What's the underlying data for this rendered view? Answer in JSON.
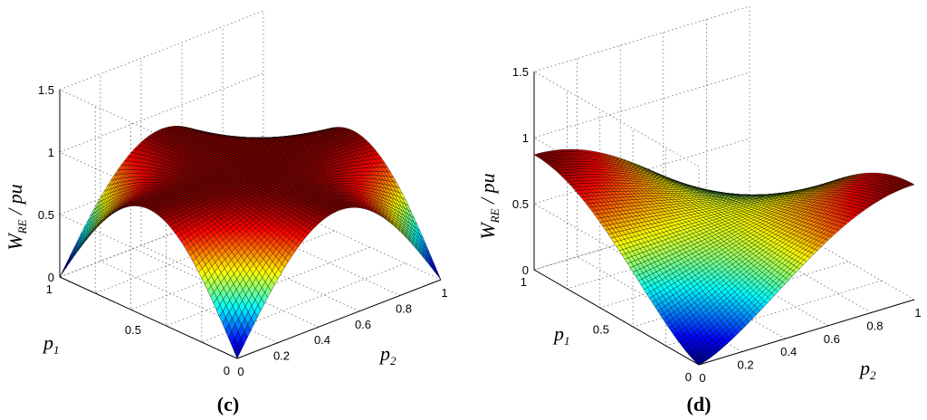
{
  "chart_data": [
    {
      "type": "surface",
      "panel_label": "(c)",
      "zlabel": "W",
      "zlabel_sub": "RE",
      "zlabel_unit": " / pu",
      "xlabel": "p",
      "xlabel_sub": "2",
      "ylabel": "p",
      "ylabel_sub": "1",
      "xlim": [
        0,
        1
      ],
      "ylim": [
        0,
        1
      ],
      "zlim": [
        0,
        1.5
      ],
      "x_ticks": [
        "0",
        "0.2",
        "0.4",
        "0.6",
        "0.8",
        "1"
      ],
      "y_ticks": [
        "0",
        "0.5",
        "1"
      ],
      "z_ticks": [
        "0",
        "0.5",
        "1",
        "1.5"
      ],
      "grid": true,
      "colormap": "jet",
      "peak_value": 0.87,
      "surface_function": "0.87*sin(pi*(p1+p2-2*p1*p2))",
      "mesh_resolution": 60
    },
    {
      "type": "surface",
      "panel_label": "(d)",
      "zlabel": "W",
      "zlabel_sub": "RE",
      "zlabel_unit": " / pu",
      "xlabel": "p",
      "xlabel_sub": "2",
      "ylabel": "p",
      "ylabel_sub": "1",
      "xlim": [
        0,
        1
      ],
      "ylim": [
        0,
        1
      ],
      "zlim": [
        0,
        1.5
      ],
      "x_ticks": [
        "0",
        "0.2",
        "0.4",
        "0.6",
        "0.8",
        "1"
      ],
      "y_ticks": [
        "0",
        "0.5",
        "1"
      ],
      "z_ticks": [
        "0",
        "0.5",
        "1",
        "1.5"
      ],
      "grid": true,
      "colormap": "jet",
      "peak_value": 0.87,
      "surface_function": "0.87*sin(pi*(p1+p2-2*p1*p2)/2)^1.4",
      "mesh_resolution": 60
    }
  ]
}
